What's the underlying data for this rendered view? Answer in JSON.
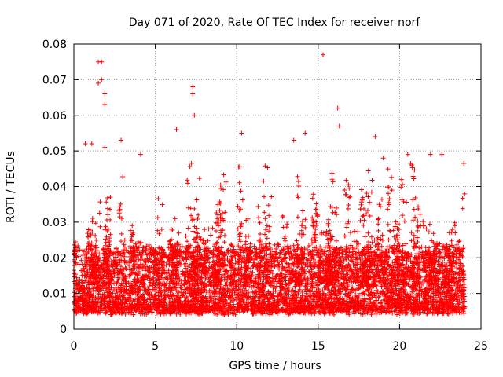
{
  "chart_data": {
    "type": "scatter",
    "title": "Day 071 of 2020, Rate Of TEC Index for receiver norf",
    "xlabel": "GPS time / hours",
    "ylabel": "ROTI / TECUs",
    "xlim": [
      0,
      25
    ],
    "ylim": [
      0,
      0.08
    ],
    "x_ticks": [
      0,
      5,
      10,
      15,
      20,
      25
    ],
    "y_ticks": [
      0,
      0.01,
      0.02,
      0.03,
      0.04,
      0.05,
      0.06,
      0.07,
      0.08
    ],
    "x_tick_labels": [
      "0",
      "5",
      "10",
      "15",
      "20",
      "25"
    ],
    "y_tick_labels": [
      "0",
      "0.01",
      "0.02",
      "0.03",
      "0.04",
      "0.05",
      "0.06",
      "0.07",
      "0.08"
    ],
    "grid": true,
    "marker": "plus",
    "series": [
      {
        "color": "#ff0000",
        "x_range": [
          0,
          24
        ],
        "dense_band": [
          0.004,
          0.022
        ],
        "notable_points": [
          {
            "x": 1.5,
            "y": 0.075
          },
          {
            "x": 1.7,
            "y": 0.075
          },
          {
            "x": 1.5,
            "y": 0.069
          },
          {
            "x": 1.7,
            "y": 0.07
          },
          {
            "x": 1.9,
            "y": 0.066
          },
          {
            "x": 1.9,
            "y": 0.063
          },
          {
            "x": 15.3,
            "y": 0.077
          },
          {
            "x": 7.3,
            "y": 0.068
          },
          {
            "x": 7.3,
            "y": 0.066
          },
          {
            "x": 7.4,
            "y": 0.06
          },
          {
            "x": 16.2,
            "y": 0.062
          },
          {
            "x": 16.3,
            "y": 0.057
          },
          {
            "x": 6.3,
            "y": 0.056
          },
          {
            "x": 10.3,
            "y": 0.055
          },
          {
            "x": 14.2,
            "y": 0.055
          },
          {
            "x": 18.5,
            "y": 0.054
          },
          {
            "x": 2.9,
            "y": 0.053
          },
          {
            "x": 13.5,
            "y": 0.053
          },
          {
            "x": 0.7,
            "y": 0.052
          },
          {
            "x": 1.1,
            "y": 0.052
          },
          {
            "x": 1.9,
            "y": 0.051
          },
          {
            "x": 20.5,
            "y": 0.049
          },
          {
            "x": 21.9,
            "y": 0.049
          },
          {
            "x": 22.6,
            "y": 0.049
          },
          {
            "x": 4.1,
            "y": 0.049
          },
          {
            "x": 19.0,
            "y": 0.048
          }
        ]
      }
    ]
  }
}
